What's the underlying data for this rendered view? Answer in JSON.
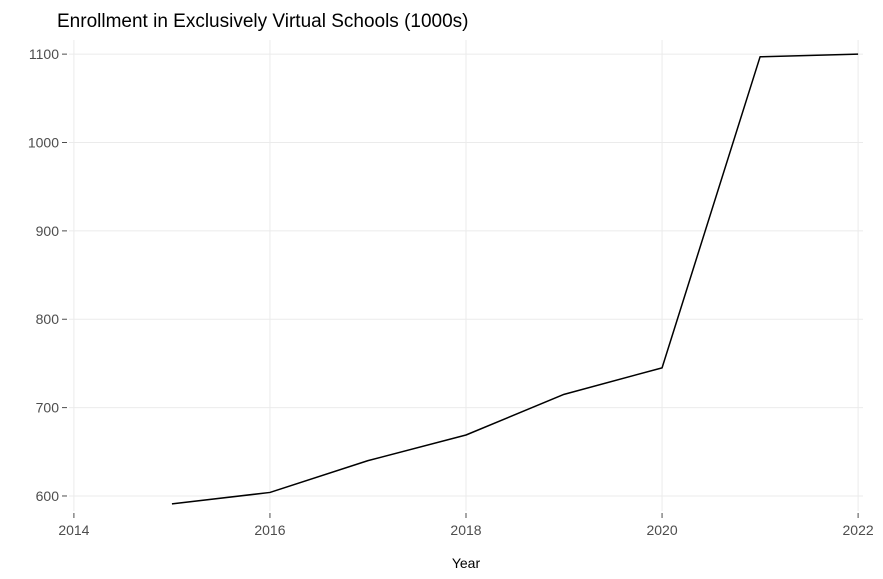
{
  "chart_data": {
    "type": "line",
    "title": "Enrollment in Exclusively Virtual Schools (1000s)",
    "xlabel": "Year",
    "ylabel": "",
    "x": [
      2015,
      2016,
      2017,
      2018,
      2019,
      2020,
      2021,
      2022
    ],
    "series": [
      {
        "values": [
          591,
          604,
          640,
          669,
          715,
          745,
          1097,
          1100
        ]
      }
    ],
    "xlim": [
      2013.95,
      2022.05
    ],
    "ylim": [
      583,
      1116
    ],
    "x_ticks": [
      2014,
      2016,
      2018,
      2020,
      2022
    ],
    "x_tick_labels": [
      "2014",
      "2016",
      "2018",
      "2020",
      "2022"
    ],
    "y_ticks": [
      600,
      700,
      800,
      900,
      1000,
      1100
    ],
    "y_tick_labels": [
      "600",
      "700",
      "800",
      "900",
      "1000",
      "1100"
    ],
    "grid": true,
    "legend": "none",
    "colors": {
      "line": "#000000",
      "grid": "#ebebeb",
      "tick_text": "#4d4d4d",
      "background": "#ffffff"
    }
  }
}
